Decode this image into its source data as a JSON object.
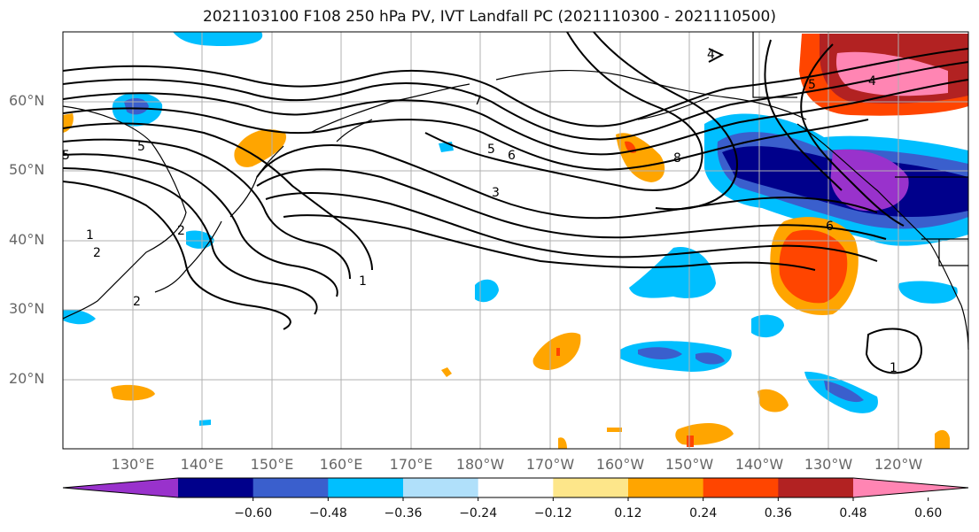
{
  "title": "2021103100 F108 250 hPa PV, IVT Landfall PC (2021110300 - 2021110500)",
  "lat_labels": [
    "60°N",
    "50°N",
    "40°N",
    "30°N",
    "20°N"
  ],
  "lon_labels": [
    "130°E",
    "140°E",
    "150°E",
    "160°E",
    "170°E",
    "180°W",
    "170°W",
    "160°W",
    "150°W",
    "140°W",
    "130°W",
    "120°W"
  ],
  "colorbar": {
    "colors": [
      "#9932cc",
      "#00008b",
      "#3a5fcd",
      "#00bfff",
      "#b0e0fa",
      "#ffffff",
      "#fde68a",
      "#ffa500",
      "#ff4500",
      "#b22222",
      "#ff85b3"
    ],
    "tick_labels": [
      "−0.60",
      "−0.48",
      "−0.36",
      "−0.24",
      "−0.12",
      "0.12",
      "0.24",
      "0.36",
      "0.48",
      "0.60"
    ]
  },
  "contour_labels": [
    "1",
    "2",
    "2",
    "2",
    "5",
    "5",
    "6",
    "6",
    "7",
    "3",
    "8",
    "1",
    "4",
    "4",
    "5",
    "5",
    "1"
  ],
  "legend_colors": {
    "coast": "#000000",
    "grid": "#b0b0b0",
    "contour": "#000000"
  }
}
